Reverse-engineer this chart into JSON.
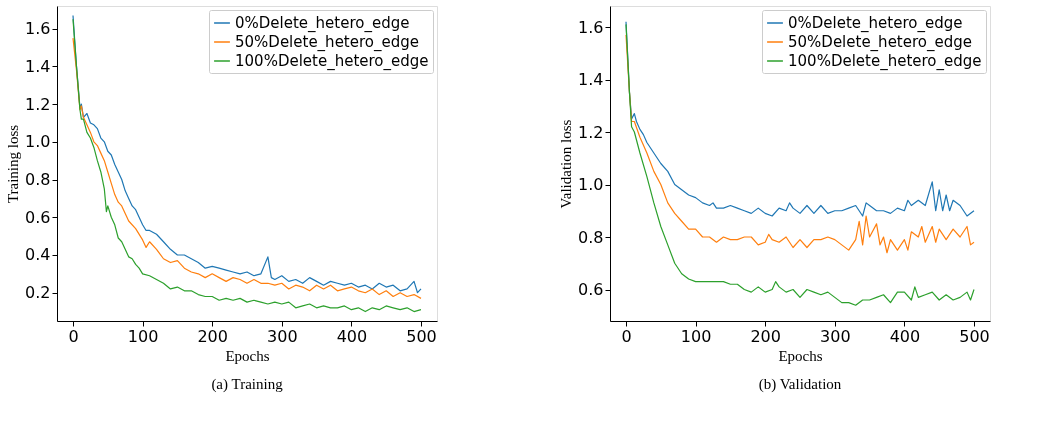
{
  "chart_data": [
    {
      "type": "line",
      "title": "(a)  Training",
      "xlabel": "Epochs",
      "ylabel": "Training loss",
      "xlim": [
        -23,
        523
      ],
      "ylim": [
        0.05,
        1.72
      ],
      "xticks": [
        0,
        100,
        200,
        300,
        400,
        500
      ],
      "yticks": [
        0.2,
        0.4,
        0.6,
        0.8,
        {
          "value": 1.0,
          "label": "1.0"
        },
        1.2,
        1.4,
        1.6
      ],
      "grid": false,
      "legend": "top right",
      "line_style": "solid",
      "marker": "none",
      "series": [
        {
          "name": "0%Delete_hetero_edge",
          "color": "#1f77b4",
          "x": [
            0,
            5,
            10,
            12,
            15,
            20,
            25,
            30,
            35,
            40,
            45,
            50,
            55,
            60,
            65,
            70,
            75,
            80,
            85,
            90,
            95,
            100,
            105,
            110,
            120,
            130,
            140,
            150,
            160,
            170,
            180,
            190,
            200,
            210,
            220,
            230,
            240,
            250,
            260,
            270,
            280,
            285,
            290,
            300,
            310,
            320,
            330,
            340,
            350,
            360,
            370,
            380,
            390,
            400,
            410,
            420,
            430,
            440,
            450,
            460,
            470,
            480,
            490,
            495,
            500
          ],
          "values": [
            1.67,
            1.4,
            1.18,
            1.2,
            1.13,
            1.15,
            1.1,
            1.09,
            1.07,
            1.02,
            1.0,
            0.95,
            0.93,
            0.88,
            0.84,
            0.8,
            0.74,
            0.7,
            0.66,
            0.64,
            0.6,
            0.56,
            0.53,
            0.53,
            0.51,
            0.47,
            0.43,
            0.4,
            0.4,
            0.38,
            0.36,
            0.33,
            0.34,
            0.33,
            0.32,
            0.31,
            0.3,
            0.31,
            0.29,
            0.3,
            0.39,
            0.28,
            0.27,
            0.29,
            0.26,
            0.27,
            0.25,
            0.28,
            0.26,
            0.24,
            0.26,
            0.25,
            0.24,
            0.25,
            0.23,
            0.24,
            0.22,
            0.25,
            0.23,
            0.24,
            0.21,
            0.22,
            0.26,
            0.2,
            0.22
          ]
        },
        {
          "name": "50%Delete_hetero_edge",
          "color": "#ff7f0e",
          "x": [
            0,
            5,
            10,
            12,
            15,
            20,
            25,
            30,
            35,
            40,
            45,
            50,
            55,
            60,
            65,
            70,
            75,
            80,
            90,
            100,
            105,
            110,
            120,
            130,
            140,
            150,
            160,
            170,
            180,
            190,
            200,
            210,
            220,
            230,
            240,
            250,
            260,
            270,
            280,
            290,
            300,
            310,
            320,
            330,
            340,
            350,
            360,
            370,
            380,
            390,
            400,
            410,
            420,
            430,
            440,
            450,
            460,
            470,
            480,
            490,
            500
          ],
          "values": [
            1.55,
            1.38,
            1.17,
            1.19,
            1.13,
            1.09,
            1.05,
            1.0,
            0.98,
            0.94,
            0.9,
            0.84,
            0.78,
            0.72,
            0.68,
            0.66,
            0.62,
            0.58,
            0.54,
            0.48,
            0.44,
            0.47,
            0.43,
            0.38,
            0.36,
            0.37,
            0.33,
            0.31,
            0.3,
            0.28,
            0.3,
            0.28,
            0.26,
            0.28,
            0.27,
            0.25,
            0.27,
            0.25,
            0.25,
            0.24,
            0.25,
            0.22,
            0.24,
            0.23,
            0.21,
            0.24,
            0.22,
            0.24,
            0.21,
            0.22,
            0.23,
            0.21,
            0.2,
            0.22,
            0.19,
            0.21,
            0.18,
            0.2,
            0.18,
            0.19,
            0.17
          ]
        },
        {
          "name": "100%Delete_hetero_edge",
          "color": "#2ca02c",
          "x": [
            0,
            5,
            10,
            12,
            15,
            20,
            25,
            30,
            35,
            40,
            45,
            48,
            50,
            55,
            60,
            65,
            70,
            75,
            80,
            85,
            90,
            95,
            100,
            110,
            120,
            130,
            140,
            150,
            160,
            170,
            180,
            190,
            200,
            210,
            220,
            230,
            240,
            250,
            260,
            270,
            280,
            290,
            300,
            310,
            320,
            330,
            340,
            350,
            360,
            370,
            380,
            390,
            400,
            410,
            420,
            430,
            440,
            450,
            460,
            470,
            480,
            490,
            500
          ],
          "values": [
            1.65,
            1.4,
            1.17,
            1.12,
            1.12,
            1.05,
            1.02,
            0.97,
            0.9,
            0.84,
            0.75,
            0.63,
            0.66,
            0.6,
            0.56,
            0.49,
            0.47,
            0.43,
            0.39,
            0.38,
            0.35,
            0.33,
            0.3,
            0.29,
            0.27,
            0.25,
            0.22,
            0.23,
            0.21,
            0.21,
            0.19,
            0.18,
            0.18,
            0.16,
            0.17,
            0.16,
            0.17,
            0.15,
            0.16,
            0.15,
            0.14,
            0.15,
            0.14,
            0.15,
            0.12,
            0.13,
            0.14,
            0.12,
            0.13,
            0.12,
            0.12,
            0.13,
            0.11,
            0.12,
            0.1,
            0.12,
            0.11,
            0.13,
            0.12,
            0.11,
            0.12,
            0.1,
            0.11
          ]
        }
      ]
    },
    {
      "type": "line",
      "title": "(b)  Validation",
      "xlabel": "Epochs",
      "ylabel": "Validation loss",
      "xlim": [
        -23,
        523
      ],
      "ylim": [
        0.48,
        1.68
      ],
      "xticks": [
        0,
        100,
        200,
        300,
        400,
        500
      ],
      "yticks": [
        0.6,
        0.8,
        {
          "value": 1.0,
          "label": "1.0"
        },
        1.2,
        1.4,
        1.6
      ],
      "grid": false,
      "legend": "top right",
      "line_style": "solid",
      "marker": "none",
      "series": [
        {
          "name": "0%Delete_hetero_edge",
          "color": "#1f77b4",
          "x": [
            0,
            5,
            8,
            12,
            15,
            20,
            25,
            30,
            40,
            50,
            60,
            70,
            80,
            90,
            100,
            110,
            120,
            125,
            130,
            140,
            150,
            160,
            170,
            180,
            190,
            200,
            210,
            220,
            230,
            235,
            240,
            250,
            260,
            270,
            280,
            290,
            300,
            310,
            320,
            330,
            340,
            345,
            350,
            360,
            370,
            380,
            390,
            400,
            405,
            410,
            420,
            430,
            440,
            445,
            450,
            455,
            460,
            465,
            470,
            480,
            490,
            500
          ],
          "values": [
            1.62,
            1.35,
            1.25,
            1.27,
            1.24,
            1.21,
            1.19,
            1.16,
            1.12,
            1.08,
            1.05,
            1.0,
            0.98,
            0.96,
            0.95,
            0.93,
            0.92,
            0.93,
            0.91,
            0.91,
            0.92,
            0.91,
            0.9,
            0.89,
            0.91,
            0.89,
            0.88,
            0.91,
            0.9,
            0.93,
            0.91,
            0.89,
            0.92,
            0.89,
            0.92,
            0.89,
            0.9,
            0.9,
            0.91,
            0.92,
            0.88,
            0.93,
            0.92,
            0.9,
            0.9,
            0.89,
            0.91,
            0.9,
            0.94,
            0.92,
            0.94,
            0.92,
            1.01,
            0.9,
            0.98,
            0.9,
            0.96,
            0.9,
            0.94,
            0.92,
            0.88,
            0.9
          ]
        },
        {
          "name": "50%Delete_hetero_edge",
          "color": "#ff7f0e",
          "x": [
            0,
            5,
            8,
            12,
            20,
            30,
            40,
            50,
            60,
            70,
            80,
            90,
            100,
            110,
            120,
            130,
            140,
            150,
            160,
            170,
            180,
            190,
            200,
            205,
            210,
            220,
            230,
            240,
            250,
            260,
            270,
            280,
            290,
            300,
            310,
            320,
            330,
            335,
            340,
            345,
            350,
            360,
            365,
            370,
            375,
            380,
            390,
            400,
            405,
            410,
            420,
            425,
            430,
            440,
            445,
            450,
            460,
            470,
            480,
            490,
            495,
            500
          ],
          "values": [
            1.57,
            1.35,
            1.24,
            1.24,
            1.18,
            1.12,
            1.05,
            1.0,
            0.93,
            0.89,
            0.86,
            0.83,
            0.83,
            0.8,
            0.8,
            0.78,
            0.8,
            0.79,
            0.79,
            0.8,
            0.8,
            0.77,
            0.78,
            0.81,
            0.79,
            0.78,
            0.8,
            0.76,
            0.79,
            0.76,
            0.79,
            0.79,
            0.8,
            0.79,
            0.77,
            0.75,
            0.79,
            0.86,
            0.77,
            0.88,
            0.8,
            0.85,
            0.77,
            0.8,
            0.74,
            0.79,
            0.75,
            0.79,
            0.75,
            0.82,
            0.8,
            0.84,
            0.78,
            0.84,
            0.78,
            0.83,
            0.79,
            0.83,
            0.8,
            0.84,
            0.77,
            0.78
          ]
        },
        {
          "name": "100%Delete_hetero_edge",
          "color": "#2ca02c",
          "x": [
            0,
            5,
            8,
            12,
            20,
            30,
            40,
            50,
            60,
            70,
            80,
            90,
            100,
            110,
            120,
            130,
            140,
            150,
            160,
            170,
            180,
            190,
            200,
            210,
            215,
            220,
            230,
            240,
            250,
            260,
            270,
            280,
            290,
            300,
            310,
            320,
            330,
            340,
            350,
            360,
            370,
            380,
            390,
            400,
            410,
            415,
            420,
            430,
            440,
            450,
            460,
            470,
            480,
            490,
            495,
            500
          ],
          "values": [
            1.61,
            1.35,
            1.22,
            1.2,
            1.12,
            1.03,
            0.93,
            0.84,
            0.77,
            0.7,
            0.66,
            0.64,
            0.63,
            0.63,
            0.63,
            0.63,
            0.63,
            0.62,
            0.62,
            0.6,
            0.59,
            0.61,
            0.59,
            0.6,
            0.63,
            0.61,
            0.59,
            0.6,
            0.57,
            0.6,
            0.59,
            0.58,
            0.59,
            0.57,
            0.55,
            0.55,
            0.54,
            0.56,
            0.56,
            0.57,
            0.58,
            0.55,
            0.59,
            0.59,
            0.56,
            0.61,
            0.57,
            0.58,
            0.59,
            0.56,
            0.58,
            0.56,
            0.57,
            0.59,
            0.56,
            0.6
          ]
        }
      ]
    }
  ]
}
